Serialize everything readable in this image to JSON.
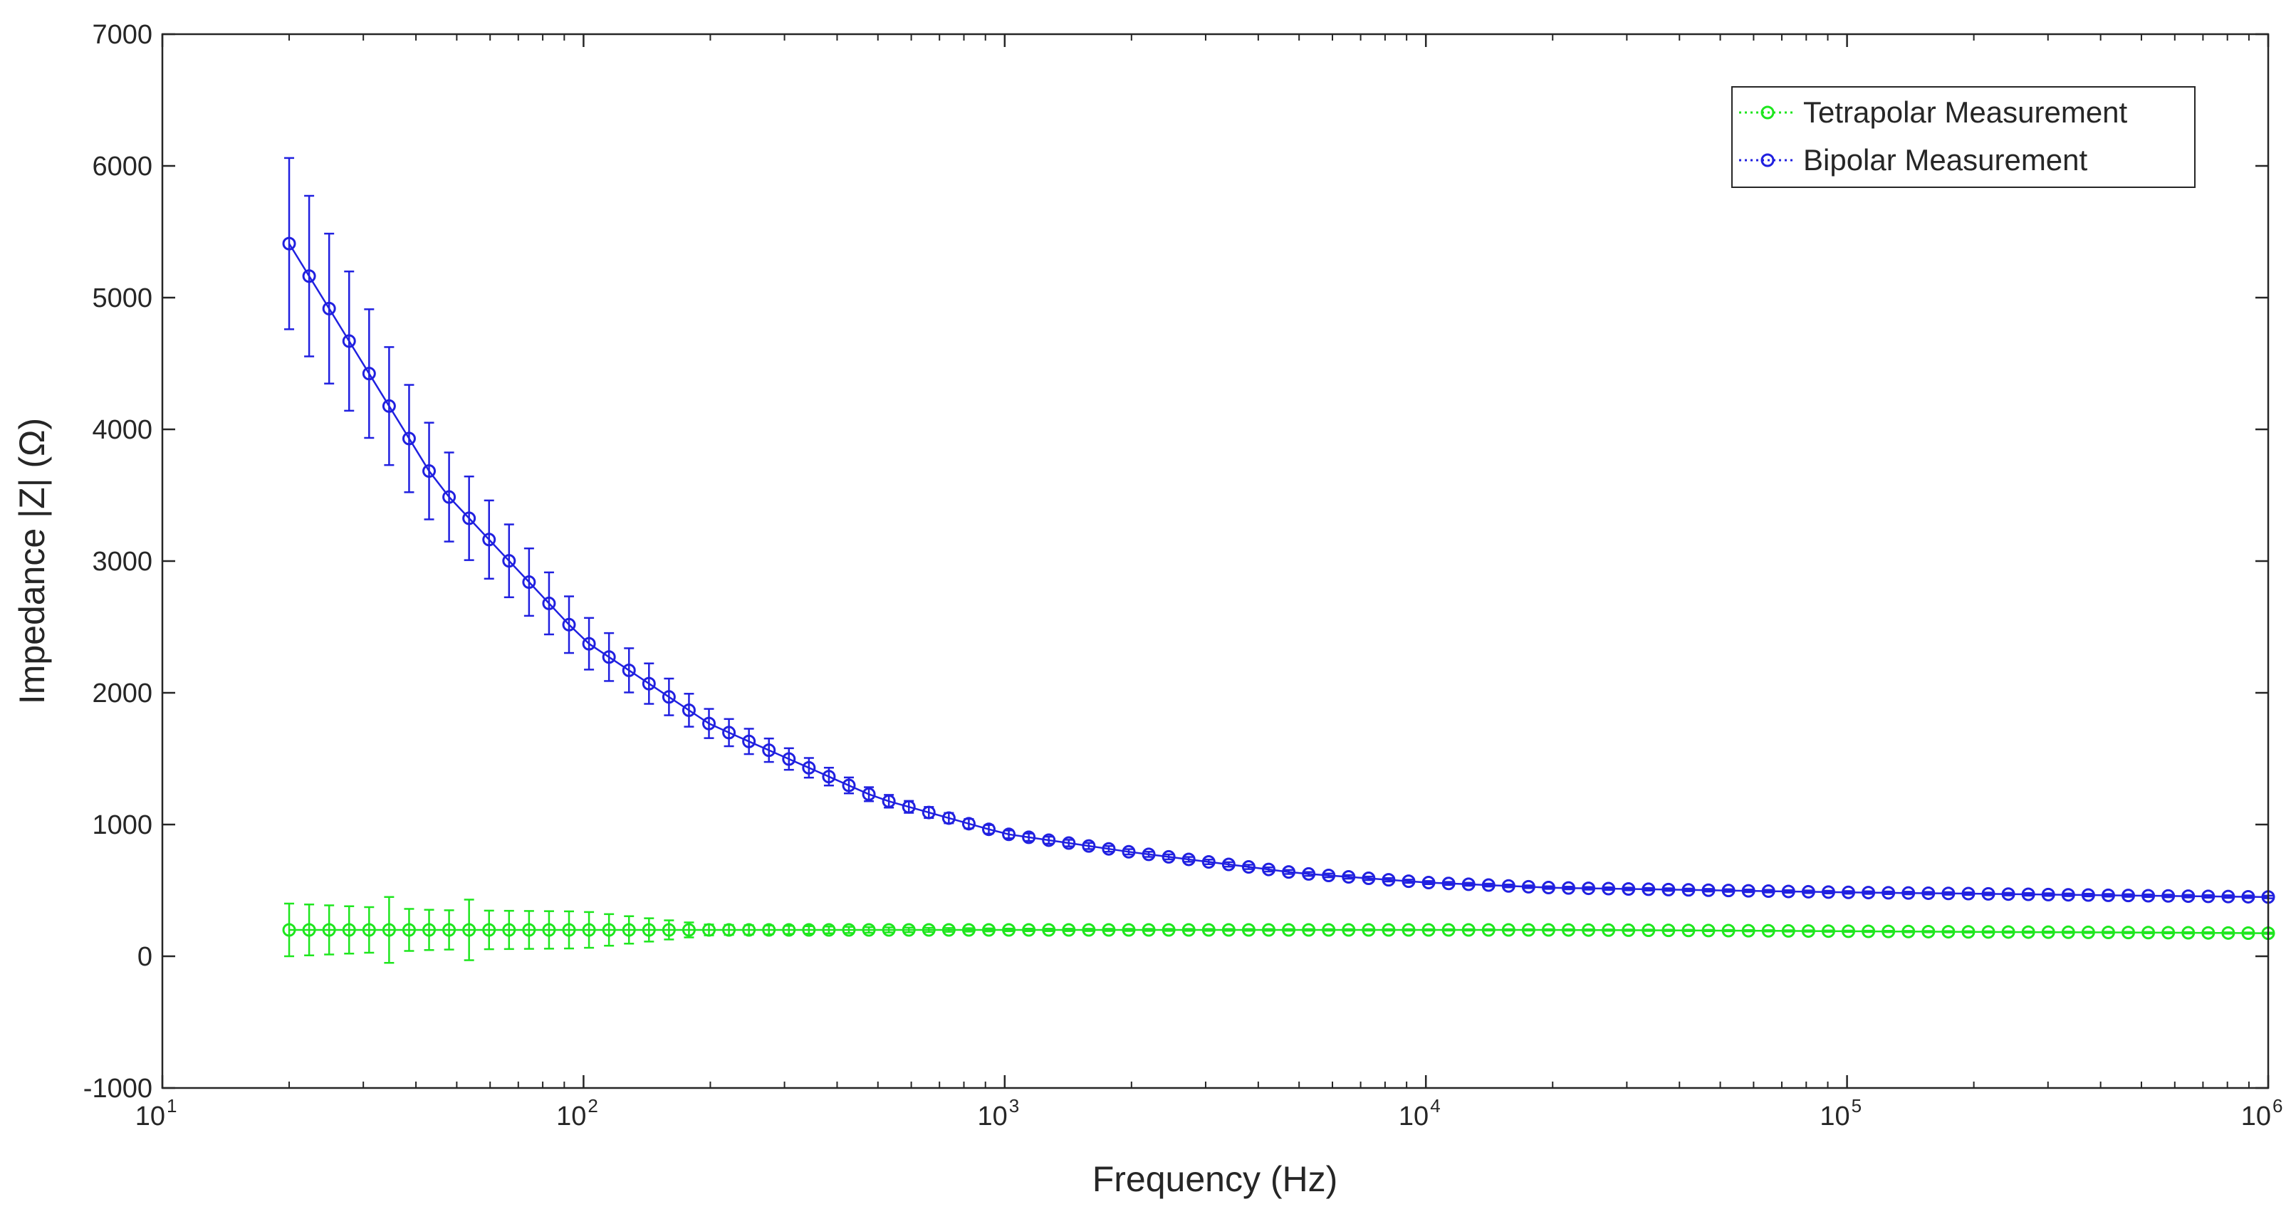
{
  "chart_data": {
    "type": "line",
    "title": "",
    "xlabel": "Frequency (Hz)",
    "ylabel": "Impedance |Z| (Ω)",
    "x_scale": "log",
    "xlim": [
      10,
      1000000
    ],
    "ylim": [
      -1000,
      7000
    ],
    "x_ticks": [
      {
        "base": "10",
        "exp": "1",
        "value": 10
      },
      {
        "base": "10",
        "exp": "2",
        "value": 100
      },
      {
        "base": "10",
        "exp": "3",
        "value": 1000
      },
      {
        "base": "10",
        "exp": "4",
        "value": 10000
      },
      {
        "base": "10",
        "exp": "5",
        "value": 100000
      },
      {
        "base": "10",
        "exp": "6",
        "value": 1000000
      }
    ],
    "y_ticks": [
      "-1000",
      "0",
      "1000",
      "2000",
      "3000",
      "4000",
      "5000",
      "6000",
      "7000"
    ],
    "grid": false,
    "legend_position": "top-right",
    "marker": "circle",
    "sample_points": [
      20,
      45,
      100,
      200,
      500,
      1000,
      2000,
      5000,
      10000,
      20000,
      50000,
      100000,
      200000,
      500000,
      1000000
    ],
    "series": [
      {
        "name": "Tetrapolar Measurement",
        "color": "#1ee61e",
        "line_style": "dotted",
        "y": [
          200,
          200,
          200,
          200,
          200,
          200,
          200,
          200,
          200,
          200,
          195,
          190,
          185,
          180,
          175
        ],
        "err": [
          200,
          150,
          140,
          40,
          20,
          10,
          8,
          6,
          5,
          5,
          5,
          5,
          5,
          5,
          5
        ],
        "err_detail": {
          "x": [
            35,
            55
          ],
          "err": [
            250,
            230
          ]
        }
      },
      {
        "name": "Bipolar Measurement",
        "color": "#2020e0",
        "line_style": "dotted",
        "y": [
          5410,
          3580,
          2400,
          1760,
          1200,
          930,
          790,
          630,
          560,
          520,
          500,
          485,
          475,
          460,
          450
        ],
        "err": [
          650,
          350,
          200,
          110,
          50,
          30,
          20,
          15,
          12,
          10,
          10,
          10,
          10,
          10,
          10
        ]
      }
    ]
  }
}
